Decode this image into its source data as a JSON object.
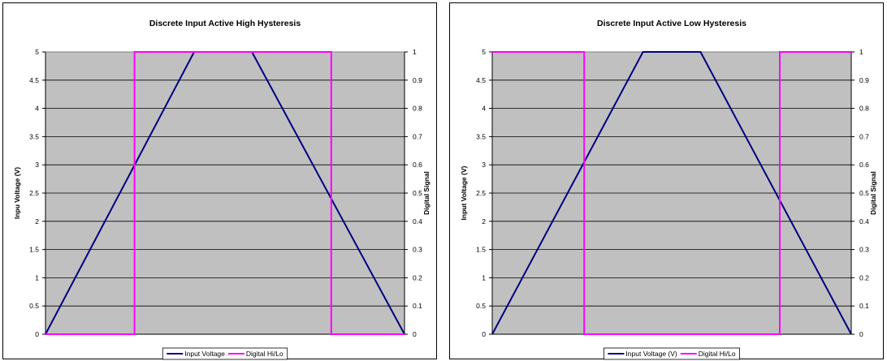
{
  "chart_data": [
    {
      "type": "line",
      "title": "Discrete Input Active High Hysteresis",
      "ylabel": "Inpu Voltage (V)",
      "y2label": "Digital Signal",
      "ylim": [
        0,
        5
      ],
      "y2lim": [
        0,
        1
      ],
      "xlim": [
        0,
        100
      ],
      "yticks": [
        "0",
        "0.5",
        "1",
        "1.5",
        "2",
        "2.5",
        "3",
        "3.5",
        "4",
        "4.5",
        "5"
      ],
      "y2ticks": [
        "0",
        "0.1",
        "0.2",
        "0.3",
        "0.4",
        "0.5",
        "0.6",
        "0.7",
        "0.8",
        "0.9",
        "1"
      ],
      "grid": true,
      "legend_position": "bottom",
      "series": [
        {
          "name": "Input Voltage",
          "axis": "left",
          "color": "#000080",
          "x": [
            0,
            41.4,
            57.5,
            100
          ],
          "y": [
            0,
            5,
            5,
            0
          ]
        },
        {
          "name": "Digital Hi/Lo",
          "axis": "right",
          "color": "#ff00ff",
          "x": [
            0,
            24.8,
            24.8,
            79.6,
            79.6,
            100
          ],
          "y": [
            0,
            0,
            1,
            1,
            0,
            0
          ]
        }
      ]
    },
    {
      "type": "line",
      "title": "Discrete Input Active Low Hysteresis",
      "ylabel": "Input Voltage (V)",
      "y2label": "Digital Signal",
      "ylim": [
        0,
        5
      ],
      "y2lim": [
        0,
        1
      ],
      "xlim": [
        0,
        100
      ],
      "yticks": [
        "0",
        "0.5",
        "1",
        "1.5",
        "2",
        "2.5",
        "3",
        "3.5",
        "4",
        "4.5",
        "5"
      ],
      "y2ticks": [
        "0",
        "0.1",
        "0.2",
        "0.3",
        "0.4",
        "0.5",
        "0.6",
        "0.7",
        "0.8",
        "0.9",
        "1"
      ],
      "grid": true,
      "legend_position": "bottom",
      "series": [
        {
          "name": "Input Voltage (V)",
          "axis": "left",
          "color": "#000080",
          "x": [
            0,
            42.0,
            58.0,
            100
          ],
          "y": [
            0,
            5,
            5,
            0
          ]
        },
        {
          "name": "Digital Hi/Lo",
          "axis": "right",
          "color": "#ff00ff",
          "x": [
            0,
            25.6,
            25.6,
            80.1,
            80.1,
            100
          ],
          "y": [
            1,
            1,
            0,
            0,
            1,
            1
          ]
        }
      ]
    }
  ]
}
